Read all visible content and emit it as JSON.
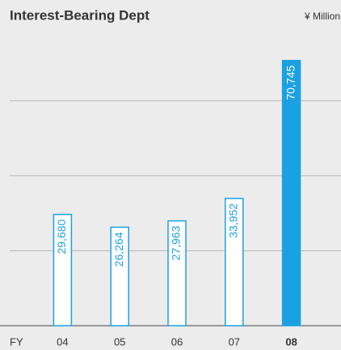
{
  "chart_data": {
    "type": "bar",
    "title": "Interest-Bearing Dept",
    "unit": "¥ Million",
    "x_label": "FY",
    "categories": [
      "04",
      "05",
      "06",
      "07",
      "08"
    ],
    "values": [
      29680,
      26264,
      27963,
      33952,
      70745
    ],
    "value_labels": [
      "29,680",
      "26,264",
      "27,963",
      "33,952",
      "70,745"
    ],
    "color": "#1ba1e2",
    "highlight": 4,
    "ylim": [
      0,
      75000
    ],
    "yticks": [
      20000,
      40000,
      60000
    ],
    "grid": true
  }
}
